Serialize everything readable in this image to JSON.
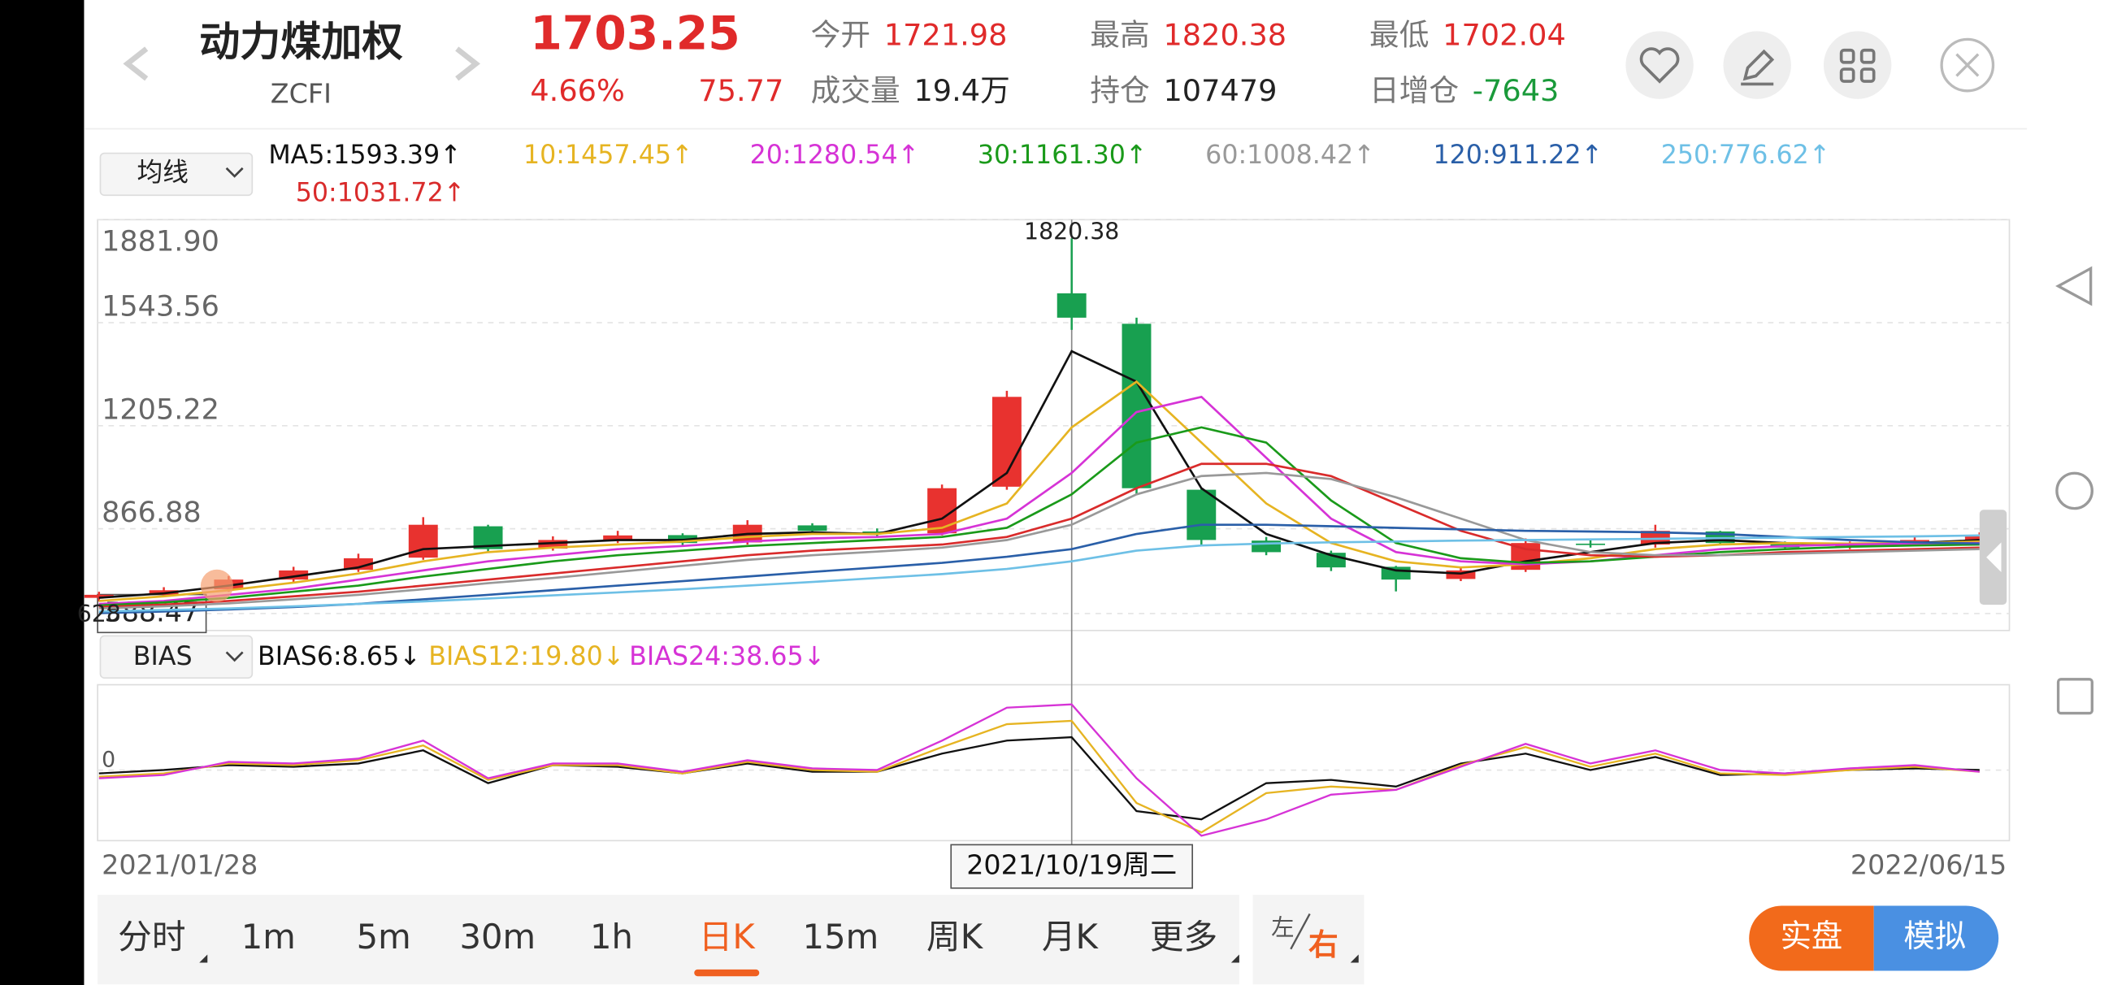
{
  "header": {
    "name": "动力煤加权",
    "code": "ZCFI",
    "price": "1703.25",
    "change_pct": "4.66%",
    "change": "75.77",
    "stats": [
      {
        "label": "今开",
        "value": "1721.98",
        "color": "#e02a2a"
      },
      {
        "label": "成交量",
        "value": "19.4万",
        "color": "#222222"
      },
      {
        "label": "最高",
        "value": "1820.38",
        "color": "#e02a2a"
      },
      {
        "label": "持仓",
        "value": "107479",
        "color": "#222222"
      },
      {
        "label": "最低",
        "value": "1702.04",
        "color": "#e02a2a"
      },
      {
        "label": "日增仓",
        "value": "-7643",
        "color": "#1a9a3a"
      }
    ]
  },
  "ma_selector": "均线",
  "indicator_selector": "BIAS",
  "periods": {
    "items": [
      "分时",
      "1m",
      "5m",
      "30m",
      "1h",
      "日K",
      "15m",
      "周K",
      "月K",
      "更多"
    ],
    "selected": 5
  },
  "side": {
    "left": "左",
    "right": "右"
  },
  "mode_buttons": [
    "实盘",
    "模拟"
  ],
  "chart_data": [
    {
      "type": "candlestick",
      "categories": [
        "2021/01/28",
        null,
        null,
        null,
        null,
        null,
        null,
        null,
        null,
        null,
        null,
        null,
        null,
        null,
        null,
        "2021/10/19周二",
        null,
        null,
        null,
        null,
        null,
        null,
        null,
        null,
        null,
        null,
        null,
        null,
        null,
        "2022/06/15"
      ],
      "crosshair_index": 15,
      "candles": {
        "open": [
          640,
          650,
          668,
          700,
          732,
          772,
          875,
          802,
          828,
          846,
          822,
          878,
          858,
          852,
          1005,
          1640,
          1540,
          995,
          828,
          788,
          742,
          702,
          732,
          818,
          815,
          858,
          818,
          806,
          816,
          828
        ],
        "high": [
          660,
          675,
          712,
          742,
          785,
          905,
          880,
          842,
          860,
          852,
          895,
          885,
          868,
          1012,
          1320,
          1820.38,
          1560,
          1000,
          840,
          795,
          745,
          740,
          835,
          830,
          880,
          860,
          825,
          825,
          840,
          855
        ],
        "low": [
          628,
          642,
          660,
          690,
          725,
          765,
          790,
          795,
          820,
          812,
          815,
          850,
          842,
          845,
          995,
          1520,
          980,
          815,
          780,
          728,
          661.17,
          695,
          725,
          805,
          805,
          815,
          798,
          800,
          810,
          822
        ],
        "close": [
          650,
          665,
          700,
          730,
          770,
          880,
          800,
          830,
          845,
          820,
          880,
          860,
          850,
          1000,
          1300,
          1560,
          1000,
          830,
          790,
          740,
          700,
          730,
          820,
          815,
          860,
          820,
          805,
          815,
          830,
          845
        ],
        "up_color": "#e8322f",
        "down_color": "#18a050"
      },
      "series": [
        {
          "name": "MA5:1593.39↑",
          "color": "#111111",
          "values": [
            640,
            655,
            680,
            710,
            740,
            800,
            810,
            820,
            830,
            830,
            850,
            855,
            850,
            900,
            1050,
            1450,
            1350,
            1000,
            850,
            780,
            730,
            720,
            760,
            790,
            820,
            830,
            820,
            815,
            820,
            830
          ]
        },
        {
          "name": "10:1457.45↑",
          "color": "#e6b422",
          "values": [
            630,
            645,
            665,
            690,
            720,
            760,
            790,
            805,
            815,
            825,
            840,
            850,
            850,
            870,
            950,
            1200,
            1350,
            1150,
            950,
            820,
            760,
            740,
            750,
            770,
            800,
            815,
            820,
            818,
            820,
            825
          ]
        },
        {
          "name": "20:1280.54↑",
          "color": "#d633d6",
          "values": [
            620,
            630,
            650,
            670,
            700,
            730,
            760,
            780,
            800,
            810,
            825,
            835,
            840,
            850,
            900,
            1050,
            1250,
            1300,
            1100,
            900,
            790,
            760,
            750,
            760,
            780,
            800,
            810,
            815,
            818,
            820
          ]
        },
        {
          "name": "30:1161.30↑",
          "color": "#1a9a1a",
          "values": [
            615,
            625,
            640,
            660,
            680,
            710,
            735,
            760,
            780,
            795,
            810,
            820,
            830,
            840,
            870,
            980,
            1150,
            1200,
            1150,
            960,
            820,
            770,
            755,
            760,
            775,
            790,
            800,
            808,
            812,
            815
          ]
        },
        {
          "name": "50:1031.72↑",
          "color": "#d92b2b",
          "values": [
            610,
            618,
            630,
            645,
            660,
            680,
            700,
            720,
            740,
            760,
            780,
            795,
            805,
            815,
            840,
            900,
            1000,
            1080,
            1080,
            1040,
            950,
            860,
            800,
            780,
            775,
            780,
            790,
            795,
            800,
            805
          ]
        },
        {
          "name": "60:1008.42↑",
          "color": "#999999",
          "values": [
            605,
            612,
            622,
            635,
            650,
            668,
            688,
            705,
            725,
            745,
            765,
            780,
            792,
            805,
            830,
            880,
            980,
            1040,
            1050,
            1030,
            970,
            900,
            830,
            790,
            780,
            780,
            785,
            790,
            795,
            800
          ]
        },
        {
          "name": "120:911.22↑",
          "color": "#2a5fa8",
          "values": [
            590,
            595,
            602,
            610,
            620,
            635,
            650,
            665,
            680,
            695,
            710,
            725,
            740,
            755,
            775,
            800,
            850,
            880,
            880,
            875,
            870,
            865,
            860,
            858,
            855,
            850,
            840,
            830,
            822,
            818
          ]
        },
        {
          "name": "250:776.62↑",
          "color": "#6ec0e6",
          "values": [
            595,
            600,
            605,
            612,
            620,
            628,
            638,
            648,
            658,
            668,
            680,
            692,
            705,
            718,
            735,
            760,
            795,
            812,
            818,
            822,
            825,
            828,
            830,
            832,
            834,
            836,
            838,
            840,
            842,
            845
          ]
        }
      ],
      "ylim": [
        588.47,
        1881.9
      ],
      "yticks": [
        {
          "value": 1881.9,
          "label": "1881.90"
        },
        1543.56,
        1205.22,
        866.88,
        588.47
      ],
      "grid": true
    },
    {
      "type": "line",
      "series": [
        {
          "name": "BIAS6:8.65↓",
          "color": "#111111",
          "values": [
            -2,
            0,
            3,
            2,
            4,
            12,
            -8,
            3,
            2,
            -2,
            4,
            -1,
            -1,
            10,
            18,
            20,
            -25,
            -30,
            -8,
            -6,
            -10,
            4,
            10,
            0,
            8,
            -3,
            -2,
            0,
            1,
            0
          ]
        },
        {
          "name": "BIAS12:19.80↓",
          "color": "#e6b422",
          "values": [
            -4,
            -2,
            4,
            3,
            6,
            15,
            -6,
            3,
            3,
            -2,
            5,
            0,
            -1,
            14,
            28,
            30,
            -20,
            -38,
            -14,
            -10,
            -12,
            3,
            14,
            2,
            10,
            -2,
            -3,
            0,
            2,
            -1
          ]
        },
        {
          "name": "BIAS24:38.65↓",
          "color": "#d633d6",
          "values": [
            -5,
            -3,
            5,
            4,
            7,
            18,
            -5,
            4,
            4,
            -1,
            6,
            1,
            0,
            18,
            38,
            40,
            -5,
            -40,
            -30,
            -15,
            -12,
            2,
            16,
            4,
            12,
            0,
            -2,
            1,
            3,
            -1
          ]
        }
      ],
      "ylim": [
        -43,
        52
      ],
      "yticks": [
        0
      ],
      "grid": true
    }
  ]
}
